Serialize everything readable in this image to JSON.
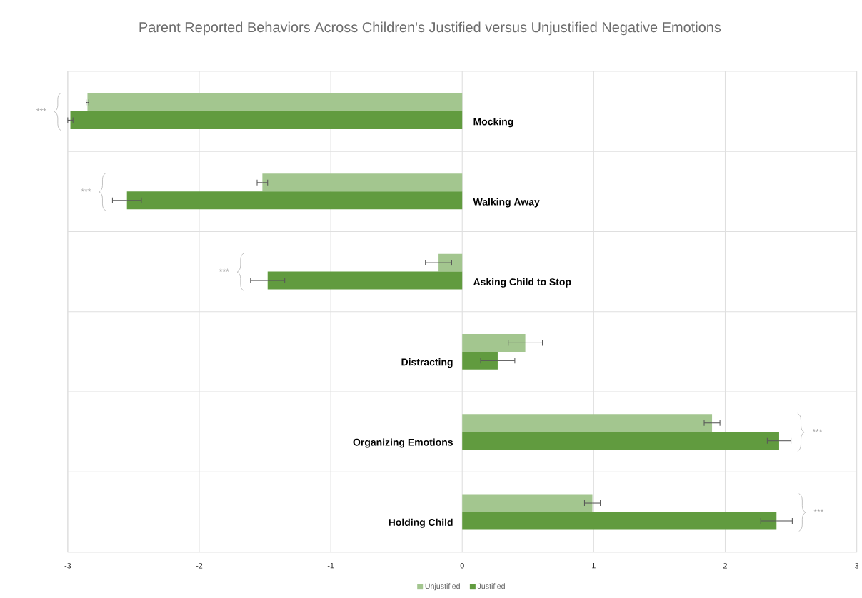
{
  "chart_data": {
    "type": "bar",
    "orientation": "horizontal",
    "title": "Parent Reported Behaviors Across Children's Justified versus Unjustified Negative Emotions",
    "categories": [
      "Mocking",
      "Walking Away",
      "Asking Child to Stop",
      "Distracting",
      "Organizing Emotions",
      "Holding Child"
    ],
    "series": [
      {
        "name": "Unjustified",
        "color": "#a3c68f",
        "values": [
          -2.85,
          -1.52,
          -0.18,
          0.48,
          1.9,
          0.99
        ],
        "errors": [
          0.01,
          0.04,
          0.1,
          0.13,
          0.06,
          0.06
        ]
      },
      {
        "name": "Justified",
        "color": "#619b3f",
        "values": [
          -2.98,
          -2.55,
          -1.48,
          0.27,
          2.41,
          2.39
        ],
        "errors": [
          0.02,
          0.11,
          0.13,
          0.13,
          0.09,
          0.12
        ]
      }
    ],
    "xlim": [
      -3,
      3
    ],
    "xticks": [
      -3,
      -2,
      -1,
      0,
      1,
      2,
      3
    ],
    "grid": true,
    "legend": "bottom",
    "annotations": [
      "***",
      "***",
      "***",
      null,
      "***",
      "***"
    ]
  }
}
